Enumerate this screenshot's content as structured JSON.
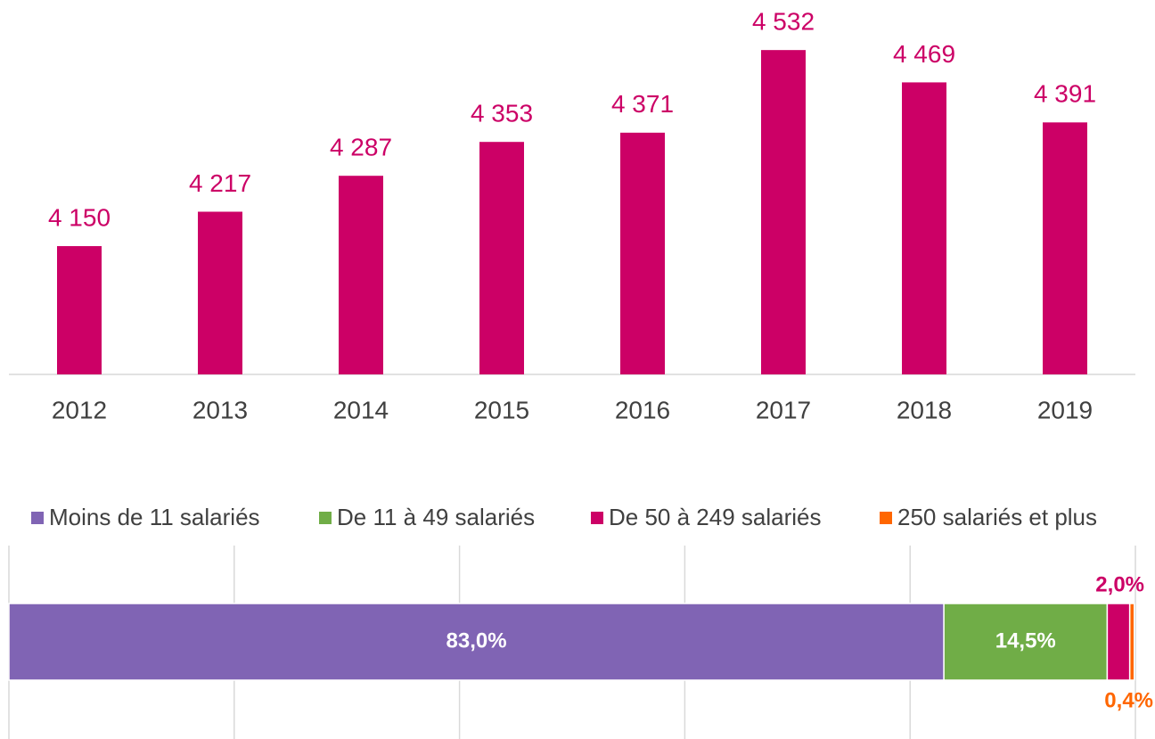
{
  "chart_data": [
    {
      "type": "bar",
      "categories": [
        "2012",
        "2013",
        "2014",
        "2015",
        "2016",
        "2017",
        "2018",
        "2019"
      ],
      "values": [
        4150,
        4217,
        4287,
        4353,
        4371,
        4532,
        4469,
        4391
      ],
      "value_labels": [
        "4 150",
        "4 217",
        "4 287",
        "4 353",
        "4 371",
        "4 532",
        "4 469",
        "4 391"
      ],
      "color": "#cc0066",
      "ylim": [
        3900,
        4600
      ]
    },
    {
      "type": "stacked_hbar",
      "series": [
        {
          "name": "Moins de 11 salariés",
          "color": "#8064b4",
          "values": [
            83.0
          ],
          "value_labels": [
            "83,0%"
          ]
        },
        {
          "name": "De 11 à 49 salariés",
          "color": "#70ad47",
          "values": [
            14.5
          ],
          "value_labels": [
            "14,5%"
          ]
        },
        {
          "name": "De 50 à 249 salariés",
          "color": "#cc0066",
          "values": [
            2.0
          ],
          "value_labels": [
            "2,0%"
          ]
        },
        {
          "name": "250 salariés et plus",
          "color": "#ff6600",
          "values": [
            0.4
          ],
          "value_labels": [
            "0,4%"
          ]
        }
      ],
      "xlim": [
        0,
        100
      ],
      "xticks": [
        0,
        20,
        40,
        60,
        80,
        100
      ],
      "grid": true,
      "legend": "top"
    }
  ]
}
